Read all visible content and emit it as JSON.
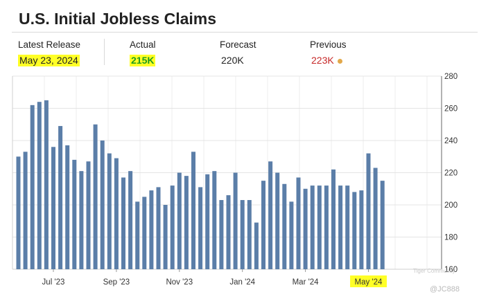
{
  "header": {
    "title": "U.S. Initial Jobless Claims"
  },
  "stats": {
    "latest_release_label": "Latest Release",
    "latest_release_value": "May 23, 2024",
    "actual_label": "Actual",
    "actual_value": "215K",
    "forecast_label": "Forecast",
    "forecast_value": "220K",
    "previous_label": "Previous",
    "previous_value": "223K"
  },
  "colors": {
    "bar": "#5b7ea8",
    "actual": "#1e9c1e",
    "previous": "#c62828",
    "highlight": "#ffff26",
    "dot": "#e2a84a"
  },
  "watermark": {
    "community": "Tiger Community",
    "handle": "@JC888"
  },
  "chart_data": {
    "type": "bar",
    "title": "U.S. Initial Jobless Claims",
    "ylim": [
      160,
      280
    ],
    "yticks": [
      160,
      180,
      200,
      220,
      240,
      260,
      280
    ],
    "y_axis_side": "right",
    "grid": true,
    "x_tick_labels": [
      "Jul '23",
      "Sep '23",
      "Nov '23",
      "Jan '24",
      "Mar '24",
      "May '24"
    ],
    "x_tick_bar_index": [
      5,
      14,
      23,
      32,
      41,
      50
    ],
    "highlighted_x_tick": "May '24",
    "values": [
      230,
      233,
      262,
      264,
      265,
      236,
      249,
      237,
      228,
      221,
      227,
      250,
      240,
      232,
      229,
      217,
      221,
      202,
      205,
      209,
      211,
      200,
      212,
      220,
      218,
      233,
      211,
      219,
      221,
      203,
      206,
      220,
      203,
      203,
      189,
      215,
      227,
      220,
      213,
      202,
      217,
      210,
      212,
      212,
      212,
      222,
      212,
      212,
      208,
      209,
      232,
      223,
      215
    ]
  }
}
